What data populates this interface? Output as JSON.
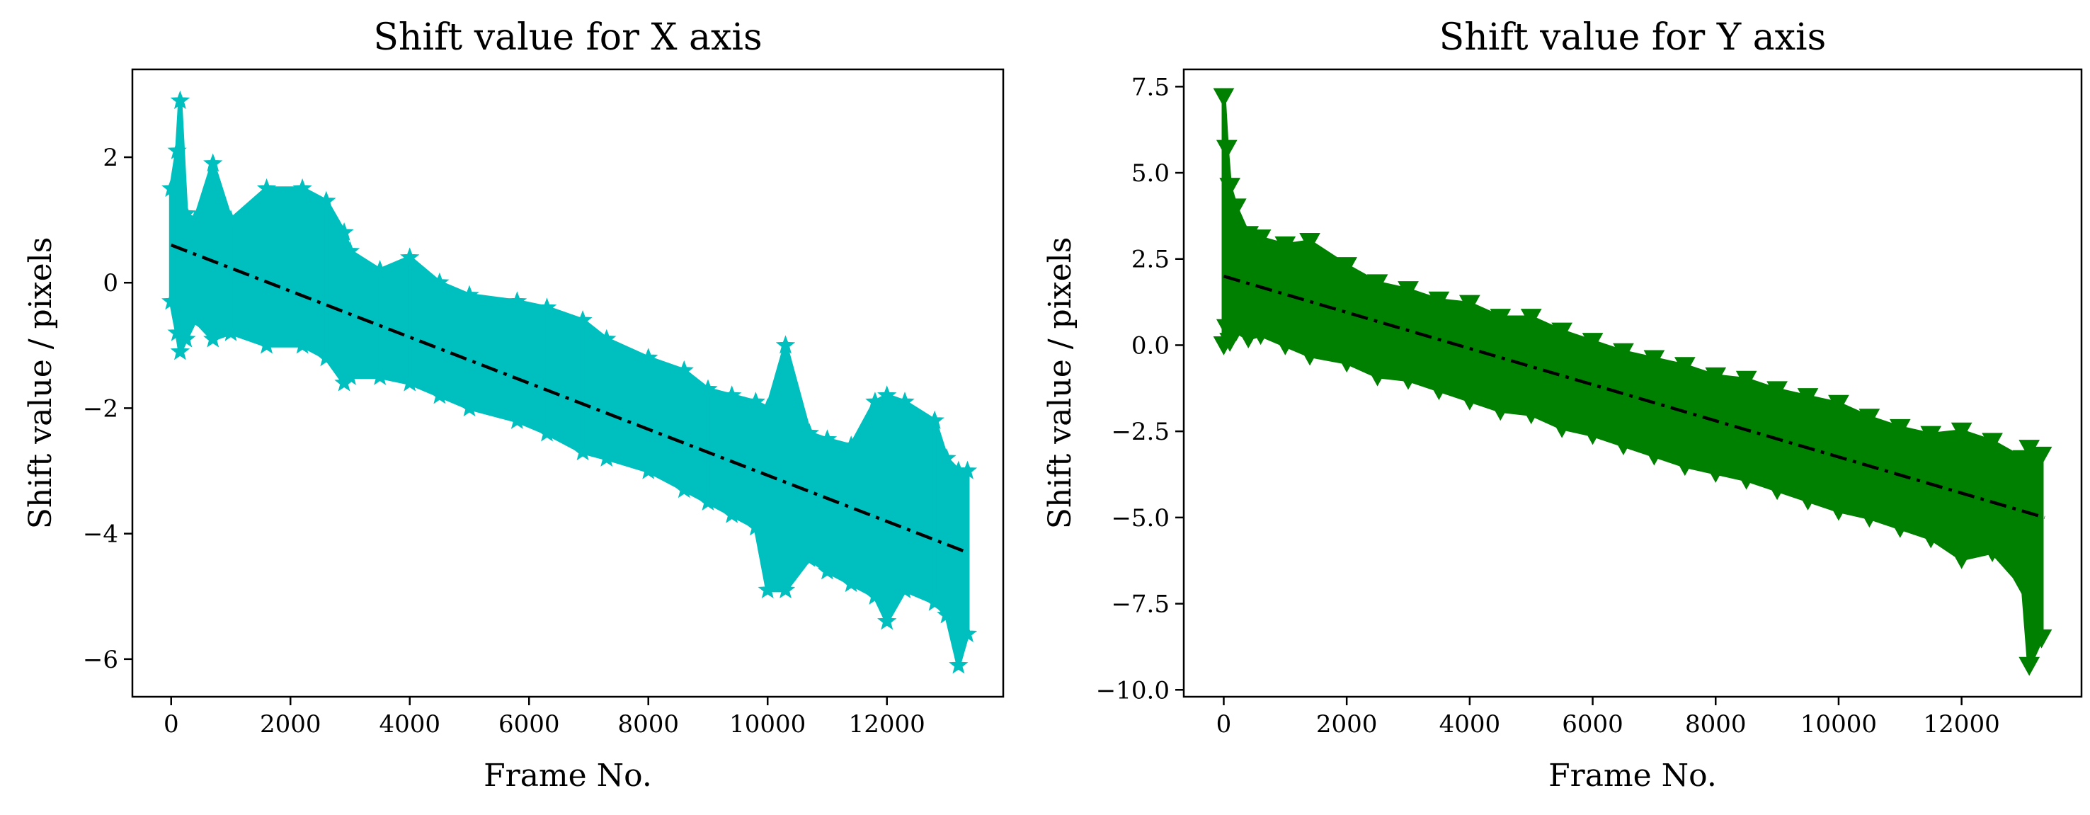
{
  "chart_data": [
    {
      "type": "line",
      "title": "Shift value for X axis",
      "xlabel": "Frame No.",
      "ylabel": "Shift value / pixels",
      "xlim": [
        -650,
        13950
      ],
      "ylim": [
        -6.6,
        3.4
      ],
      "xticks": [
        0,
        2000,
        4000,
        6000,
        8000,
        10000,
        12000
      ],
      "yticks": [
        -6,
        -4,
        -2,
        0,
        2
      ],
      "ytick_labels": [
        "−6",
        "−4",
        "−2",
        "0",
        "2"
      ],
      "grid": false,
      "series": [
        {
          "marker": "star",
          "color": "#00bfbf",
          "x": [
            0,
            100,
            150,
            250,
            400,
            700,
            1000,
            1600,
            2200,
            2600,
            2900,
            3000,
            3500,
            4000,
            4500,
            5000,
            5800,
            6300,
            6900,
            7300,
            8000,
            8600,
            9000,
            9400,
            9800,
            10000,
            10300,
            10700,
            11000,
            11400,
            11800,
            12000,
            12300,
            12800,
            13000,
            13200,
            13350
          ],
          "values": [
            0.9,
            1.9,
            2.9,
            0.5,
            0.3,
            0.7,
            0.4,
            0.2,
            0.3,
            0.0,
            -0.3,
            -0.5,
            -0.6,
            -0.7,
            -0.9,
            -1.1,
            -1.4,
            -1.3,
            -1.6,
            -1.8,
            -2.1,
            -2.3,
            -2.5,
            -2.8,
            -2.9,
            -3.2,
            -3.1,
            -3.3,
            -3.4,
            -3.6,
            -3.7,
            -3.5,
            -3.8,
            -4.0,
            -4.1,
            -4.3,
            -4.2
          ],
          "low": [
            -0.3,
            -0.8,
            -1.1,
            -0.9,
            -0.6,
            -0.9,
            -0.8,
            -1.0,
            -1.0,
            -1.2,
            -1.6,
            -1.5,
            -1.5,
            -1.6,
            -1.8,
            -2.0,
            -2.2,
            -2.4,
            -2.7,
            -2.8,
            -3.0,
            -3.3,
            -3.5,
            -3.7,
            -3.9,
            -4.9,
            -4.9,
            -4.4,
            -4.6,
            -4.8,
            -5.0,
            -5.4,
            -4.9,
            -5.1,
            -5.3,
            -6.1,
            -5.6
          ],
          "high": [
            1.5,
            2.1,
            2.9,
            1.1,
            1.0,
            1.9,
            1.0,
            1.5,
            1.5,
            1.3,
            0.8,
            0.5,
            0.2,
            0.4,
            0.0,
            -0.2,
            -0.3,
            -0.4,
            -0.6,
            -0.9,
            -1.2,
            -1.4,
            -1.7,
            -1.8,
            -1.9,
            -2.0,
            -1.0,
            -2.4,
            -2.5,
            -2.6,
            -1.9,
            -1.8,
            -1.9,
            -2.2,
            -2.8,
            -3.0,
            -3.0
          ]
        },
        {
          "style": "dash-dot",
          "color": "#000000",
          "x": [
            0,
            13350
          ],
          "values": [
            0.6,
            -4.3
          ]
        }
      ]
    },
    {
      "type": "line",
      "title": "Shift value for Y axis",
      "xlabel": "Frame No.",
      "ylabel": "Shift value / pixels",
      "xlim": [
        -650,
        13950
      ],
      "ylim": [
        -10.2,
        8.0
      ],
      "xticks": [
        0,
        2000,
        4000,
        6000,
        8000,
        10000,
        12000
      ],
      "yticks": [
        -10.0,
        -7.5,
        -5.0,
        -2.5,
        0.0,
        2.5,
        5.0,
        7.5
      ],
      "ytick_labels": [
        "−10.0",
        "−7.5",
        "−5.0",
        "−2.5",
        "0.0",
        "2.5",
        "5.0",
        "7.5"
      ],
      "grid": false,
      "series": [
        {
          "marker": "triangle-down",
          "color": "#008000",
          "x": [
            0,
            50,
            100,
            200,
            400,
            600,
            1000,
            1400,
            2000,
            2500,
            3000,
            3500,
            4000,
            4500,
            5000,
            5500,
            6000,
            6500,
            7000,
            7500,
            8000,
            8500,
            9000,
            9500,
            10000,
            10500,
            11000,
            11500,
            12000,
            12500,
            13000,
            13100,
            13300
          ],
          "values": [
            3.0,
            4.2,
            2.6,
            2.3,
            2.1,
            1.9,
            1.6,
            1.3,
            1.0,
            0.7,
            0.5,
            0.2,
            -0.1,
            -0.4,
            -0.6,
            -0.9,
            -1.2,
            -1.4,
            -1.7,
            -2.0,
            -2.3,
            -2.5,
            -2.8,
            -3.0,
            -3.3,
            -3.5,
            -3.8,
            -4.1,
            -4.3,
            -4.6,
            -4.9,
            -5.2,
            -5.1
          ],
          "low": [
            0.0,
            0.5,
            0.1,
            0.4,
            0.2,
            0.3,
            0.0,
            -0.3,
            -0.5,
            -0.9,
            -1.0,
            -1.3,
            -1.6,
            -1.9,
            -2.0,
            -2.4,
            -2.6,
            -2.9,
            -3.2,
            -3.5,
            -3.7,
            -3.9,
            -4.2,
            -4.5,
            -4.8,
            -5.0,
            -5.3,
            -5.6,
            -6.2,
            -6.0,
            -7.0,
            -9.3,
            -8.5
          ],
          "high": [
            7.2,
            5.7,
            4.6,
            4.0,
            3.2,
            3.1,
            2.9,
            3.0,
            2.3,
            1.8,
            1.6,
            1.3,
            1.2,
            0.8,
            0.8,
            0.4,
            0.1,
            -0.2,
            -0.4,
            -0.6,
            -0.9,
            -1.0,
            -1.3,
            -1.5,
            -1.7,
            -2.1,
            -2.4,
            -2.6,
            -2.5,
            -2.8,
            -3.3,
            -3.0,
            -3.2
          ]
        },
        {
          "style": "dash-dot",
          "color": "#000000",
          "x": [
            0,
            13350
          ],
          "values": [
            2.0,
            -5.0
          ]
        }
      ]
    }
  ]
}
